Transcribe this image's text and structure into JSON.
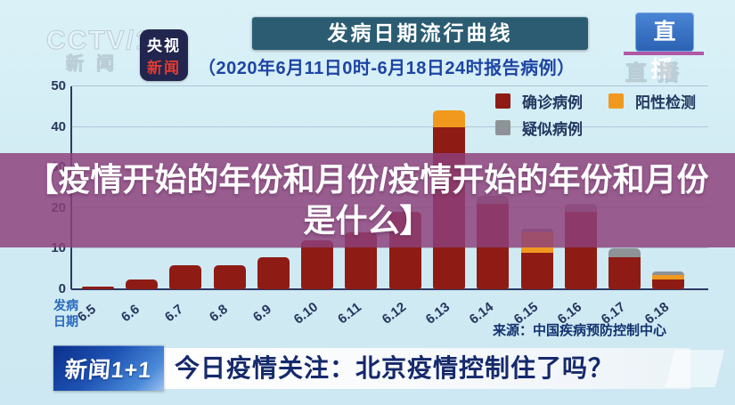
{
  "header": {
    "cctv_watermark_line1": "CCTV/13",
    "cctv_watermark_line2": "新闻",
    "news_badge": {
      "line1": "央视",
      "line2": "新闻"
    },
    "live_badge": "直播",
    "live_ghost": "直播"
  },
  "chart": {
    "title": "发病日期流行曲线",
    "subtitle": "（2020年6月11日0时-6月18日24时报告病例）",
    "x_axis_label_line1": "发病",
    "x_axis_label_line2": "日期",
    "source": "来源：中国疾病预防控制中心"
  },
  "chart_data": {
    "type": "bar",
    "stacked": true,
    "title": "发病日期流行曲线",
    "subtitle": "（2020年6月11日0时-6月18日24时报告病例）",
    "categories": [
      "6.5",
      "6.6",
      "6.7",
      "6.8",
      "6.9",
      "6.10",
      "6.11",
      "6.12",
      "6.13",
      "6.14",
      "6.15",
      "6.16",
      "6.17",
      "6.18"
    ],
    "series": [
      {
        "name": "确诊病例",
        "color": "#8e1c15",
        "values": [
          0.7,
          2.5,
          6,
          6,
          8,
          12,
          14,
          19,
          40,
          21,
          9,
          19,
          8,
          2.5
        ]
      },
      {
        "name": "阳性检测",
        "color": "#f0991e",
        "values": [
          0,
          0,
          0,
          0,
          0,
          0,
          0,
          0,
          4,
          0,
          5,
          0,
          0,
          1
        ]
      },
      {
        "name": "疑似病例",
        "color": "#8e9397",
        "values": [
          0,
          0,
          0,
          0,
          0,
          0,
          0,
          0,
          0,
          2,
          1,
          2,
          2,
          1
        ]
      }
    ],
    "xlabel": "发病日期",
    "ylabel": "",
    "ylim": [
      0,
      50
    ],
    "yticks": [
      0,
      10,
      20,
      30,
      40,
      50
    ],
    "grid": true,
    "legend_position": "top-right",
    "source": "来源：中国疾病预防控制中心"
  },
  "overlay": {
    "line1": "【疫情开始的年份和月份/疫情开始的年份和月份",
    "line2": "是什么】"
  },
  "footer": {
    "program_logo": "新闻1+1",
    "headline": "今日疫情关注：北京疫情控制住了吗？"
  }
}
